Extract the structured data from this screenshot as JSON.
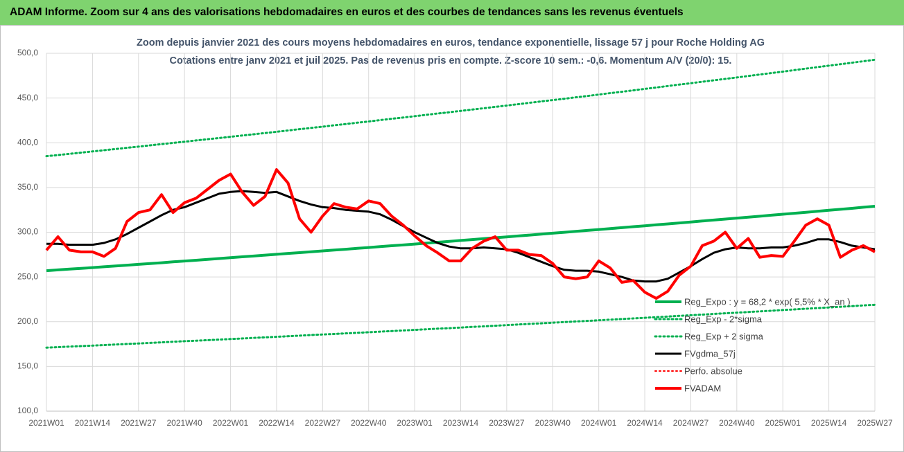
{
  "chart_data": {
    "type": "line",
    "header": "ADAM Informe. Zoom sur 4 ans des valorisations hebdomadaires en euros et des courbes de tendances sans les revenus éventuels",
    "title": "Zoom depuis janvier 2021 des cours moyens hebdomadaires en euros, tendance exponentielle, lissage 57 j pour Roche Holding AG",
    "subtitle": "Cotations entre janv 2021 et juil 2025. Pas de revenus pris en compte. Z-score 10 sem.: -0,6. Momentum A/V (20/0): 15.",
    "categories": [
      "2021W01",
      null,
      null,
      null,
      "2021W14",
      null,
      null,
      null,
      "2021W27",
      null,
      null,
      null,
      "2021W40",
      null,
      null,
      null,
      "2022W01",
      null,
      null,
      null,
      "2022W14",
      null,
      null,
      null,
      "2022W27",
      null,
      null,
      null,
      "2022W40",
      null,
      null,
      null,
      "2023W01",
      null,
      null,
      null,
      "2023W14",
      null,
      null,
      null,
      "2023W27",
      null,
      null,
      null,
      "2023W40",
      null,
      null,
      null,
      "2024W01",
      null,
      null,
      null,
      "2024W14",
      null,
      null,
      null,
      "2024W27",
      null,
      null,
      null,
      "2024W40",
      null,
      null,
      null,
      "2025W01",
      null,
      null,
      null,
      "2025W14",
      null,
      null,
      null,
      "2025W27"
    ],
    "ylim": [
      100,
      500
    ],
    "yticks": [
      {
        "value": 100,
        "label": "100,0"
      },
      {
        "value": 150,
        "label": "150,0"
      },
      {
        "value": 200,
        "label": "200,0"
      },
      {
        "value": 250,
        "label": "250,0"
      },
      {
        "value": 300,
        "label": "300,0"
      },
      {
        "value": 350,
        "label": "350,0"
      },
      {
        "value": 400,
        "label": "400,0"
      },
      {
        "value": 450,
        "label": "450,0"
      },
      {
        "value": 500,
        "label": "500,0"
      }
    ],
    "grid": true,
    "legend": "lower right",
    "series": [
      {
        "name": "Reg_Expo : y = 68,2 * exp( 5,5% * X_an )",
        "color": "#00b050",
        "dash": "solid",
        "width": 4,
        "values": [
          257.0,
          257.9,
          258.8,
          259.6,
          260.5,
          261.4,
          262.3,
          263.2,
          264.1,
          265.0,
          265.9,
          266.9,
          267.8,
          268.7,
          269.6,
          270.6,
          271.5,
          272.5,
          273.4,
          274.4,
          275.3,
          276.3,
          277.2,
          278.2,
          279.1,
          280.1,
          281.0,
          282.0,
          282.9,
          283.9,
          284.9,
          285.8,
          286.8,
          287.8,
          288.8,
          289.8,
          290.8,
          291.8,
          292.8,
          293.8,
          294.8,
          295.8,
          296.8,
          297.9,
          298.9,
          299.9,
          301.0,
          302.0,
          303.0,
          304.1,
          305.1,
          306.2,
          307.2,
          308.3,
          309.3,
          310.4,
          311.4,
          312.5,
          313.6,
          314.7,
          315.8,
          316.9,
          317.9,
          319.0,
          320.1,
          321.2,
          322.3,
          323.4,
          324.5,
          325.6,
          326.7,
          327.9,
          329.0
        ]
      },
      {
        "name": "Reg_Exp - 2*sigma",
        "color": "#00b050",
        "dash": "dotted",
        "width": 3,
        "values": [
          171.0,
          171.6,
          172.2,
          172.7,
          173.3,
          173.9,
          174.5,
          175.1,
          175.7,
          176.3,
          176.9,
          177.6,
          178.2,
          178.8,
          179.4,
          180.0,
          180.6,
          181.2,
          181.9,
          182.5,
          183.1,
          183.8,
          184.4,
          185.1,
          185.7,
          186.3,
          187.0,
          187.6,
          188.2,
          188.9,
          189.5,
          190.2,
          190.8,
          191.5,
          192.2,
          192.8,
          193.5,
          194.2,
          194.8,
          195.5,
          196.2,
          196.9,
          197.6,
          198.2,
          198.9,
          199.6,
          200.3,
          200.9,
          201.6,
          202.3,
          203.0,
          203.7,
          204.4,
          205.1,
          205.8,
          206.5,
          207.2,
          207.9,
          208.7,
          209.4,
          210.1,
          210.8,
          211.6,
          212.3,
          213.0,
          213.7,
          214.5,
          215.2,
          215.9,
          216.7,
          217.4,
          218.2,
          218.9
        ]
      },
      {
        "name": "Reg_Exp + 2 sigma",
        "color": "#00b050",
        "dash": "dotted",
        "width": 3,
        "values": [
          385.0,
          386.3,
          387.6,
          389.0,
          390.3,
          391.7,
          393.0,
          394.4,
          395.7,
          397.1,
          398.5,
          399.8,
          401.2,
          402.6,
          404.0,
          405.3,
          406.7,
          408.1,
          409.5,
          410.9,
          412.3,
          413.7,
          415.2,
          416.6,
          418.0,
          419.5,
          420.9,
          422.4,
          423.8,
          425.3,
          426.8,
          428.2,
          429.7,
          431.2,
          432.7,
          434.1,
          435.6,
          437.1,
          438.6,
          440.1,
          441.6,
          443.1,
          444.7,
          446.2,
          447.7,
          449.2,
          450.8,
          452.3,
          453.9,
          455.5,
          457.0,
          458.6,
          460.2,
          461.8,
          463.4,
          465.0,
          466.6,
          468.2,
          469.8,
          471.4,
          473.0,
          474.6,
          476.3,
          477.9,
          479.5,
          481.2,
          482.9,
          484.5,
          486.2,
          487.8,
          489.5,
          491.1,
          492.8
        ]
      },
      {
        "name": "FVgdma_57j",
        "color": "#000000",
        "dash": "solid",
        "width": 3,
        "values": [
          287,
          287,
          286,
          286,
          286,
          288,
          292,
          298,
          305,
          312,
          319,
          325,
          328,
          333,
          338,
          343,
          345,
          346,
          345,
          344,
          345,
          340,
          335,
          331,
          328,
          327,
          325,
          324,
          323,
          320,
          314,
          307,
          300,
          294,
          288,
          284,
          282,
          282,
          283,
          282,
          281,
          277,
          272,
          267,
          262,
          258,
          257,
          257,
          256,
          253,
          250,
          246,
          245,
          245,
          248,
          255,
          262,
          270,
          277,
          281,
          283,
          282,
          282,
          283,
          283,
          285,
          288,
          292,
          292,
          289,
          285,
          283,
          281
        ]
      },
      {
        "name": "Perfo. absolue",
        "color": "#ff0000",
        "dash": "dotted",
        "width": 2
      },
      {
        "name": "FVADAM",
        "color": "#ff0000",
        "dash": "solid",
        "width": 4,
        "values": [
          280,
          295,
          280,
          278,
          278,
          273,
          282,
          312,
          322,
          325,
          342,
          322,
          333,
          338,
          348,
          358,
          365,
          345,
          330,
          340,
          370,
          355,
          315,
          300,
          318,
          332,
          328,
          326,
          335,
          332,
          318,
          308,
          296,
          285,
          277,
          268,
          268,
          282,
          290,
          295,
          280,
          280,
          275,
          274,
          265,
          250,
          248,
          250,
          268,
          260,
          244,
          246,
          233,
          226,
          234,
          252,
          262,
          285,
          290,
          300,
          282,
          293,
          272,
          274,
          273,
          290,
          308,
          315,
          308,
          272,
          280,
          285,
          278
        ]
      }
    ]
  }
}
